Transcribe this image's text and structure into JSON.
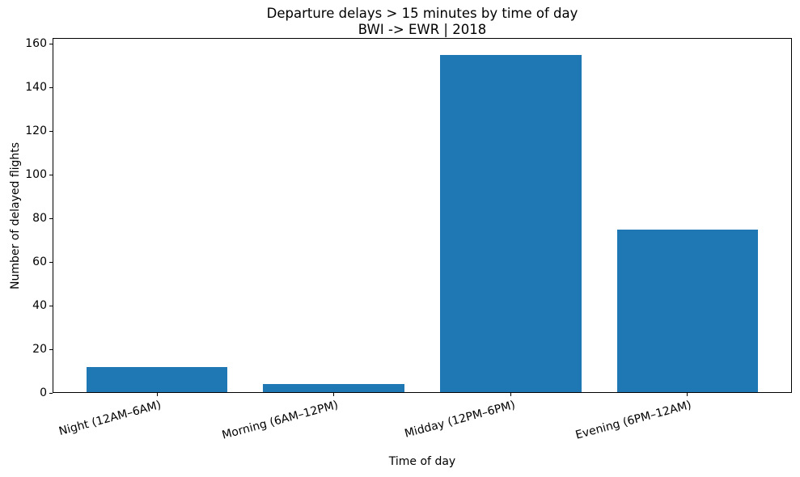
{
  "chart_data": {
    "type": "bar",
    "title": "Departure delays > 15 minutes by time of day",
    "subtitle": "BWI -> EWR | 2018",
    "xlabel": "Time of day",
    "ylabel": "Number of delayed flights",
    "categories": [
      "Night (12AM–6AM)",
      "Morning (6AM–12PM)",
      "Midday (12PM–6PM)",
      "Evening (6PM–12AM)"
    ],
    "values": [
      12,
      4,
      155,
      75
    ],
    "bar_color": "#1f77b4",
    "ylim": [
      0,
      162.75
    ],
    "yticks": [
      0,
      20,
      40,
      60,
      80,
      100,
      120,
      140,
      160
    ],
    "bar_width_fraction": 0.8,
    "xtick_rotation_deg": 15,
    "grid": false,
    "legend": false
  }
}
